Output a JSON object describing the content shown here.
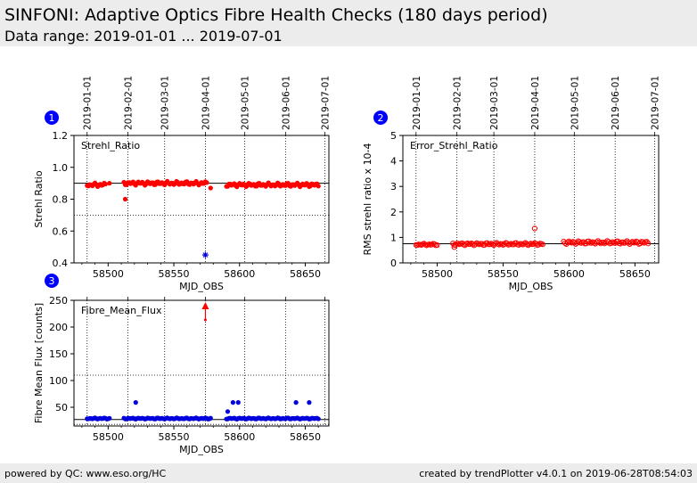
{
  "header": {
    "title": "SINFONI: Adaptive Optics Fibre Health Checks (180 days period)",
    "data_range": "Data range: 2019-01-01 ... 2019-07-01"
  },
  "footer": {
    "left": "powered by QC: www.eso.org/HC",
    "right": "created by trendPlotter v4.0.1 on 2019-06-28T08:54:03"
  },
  "colors": {
    "points": "#ff0000",
    "points_blue": "#0000dd",
    "badge": "#0000ff",
    "refline": "#000000"
  },
  "chart_data": [
    {
      "id": "1",
      "type": "scatter",
      "title": "Strehl_Ratio",
      "xlabel": "MJD_OBS",
      "ylabel": "Strehl Ratio",
      "xlim": [
        58474,
        58668
      ],
      "ylim": [
        0.4,
        1.2
      ],
      "xticks": [
        58500,
        58550,
        58600,
        58650
      ],
      "yticks": [
        0.4,
        0.6,
        0.8,
        1.0,
        1.2
      ],
      "ytick_labels": [
        "0.4",
        "0.6",
        "0.8",
        "1.0",
        "1.2"
      ],
      "reference_line": 0.9,
      "limit_lines": [
        0.7
      ],
      "date_ticks": [
        {
          "mjd": 58484,
          "label": "2019-01-01"
        },
        {
          "mjd": 58515,
          "label": "2019-02-01"
        },
        {
          "mjd": 58543,
          "label": "2019-03-01"
        },
        {
          "mjd": 58574,
          "label": "2019-04-01"
        },
        {
          "mjd": 58604,
          "label": "2019-05-01"
        },
        {
          "mjd": 58635,
          "label": "2019-06-01"
        },
        {
          "mjd": 58665,
          "label": "2019-07-01"
        }
      ],
      "segments": [
        {
          "start": 58484,
          "end": 58498,
          "base": 0.89,
          "amp": 0.01
        },
        {
          "start": 58512,
          "end": 58575,
          "base": 0.9,
          "amp": 0.01
        },
        {
          "start": 58590,
          "end": 58660,
          "base": 0.89,
          "amp": 0.01
        }
      ],
      "outliers": [
        {
          "x": 58513,
          "y": 0.8
        },
        {
          "x": 58578,
          "y": 0.87
        },
        {
          "x": 58501,
          "y": 0.9
        }
      ],
      "special_points": [
        {
          "x": 58574,
          "y": 0.45,
          "marker": "star",
          "color": "#0000dd"
        }
      ]
    },
    {
      "id": "2",
      "type": "scatter",
      "title": "Error_Strehl_Ratio",
      "xlabel": "MJD_OBS",
      "ylabel": "RMS strehl ratio x 10-4",
      "xlim": [
        58474,
        58668
      ],
      "ylim": [
        0,
        5
      ],
      "xticks": [
        58500,
        58550,
        58600,
        58650
      ],
      "yticks": [
        0,
        1,
        2,
        3,
        4,
        5
      ],
      "ytick_labels": [
        "0",
        "1",
        "2",
        "3",
        "4",
        "5"
      ],
      "reference_line": 0.75,
      "limit_lines": [],
      "date_ticks": [
        {
          "mjd": 58484,
          "label": "2019-01-01"
        },
        {
          "mjd": 58515,
          "label": "2019-02-01"
        },
        {
          "mjd": 58543,
          "label": "2019-03-01"
        },
        {
          "mjd": 58574,
          "label": "2019-04-01"
        },
        {
          "mjd": 58604,
          "label": "2019-05-01"
        },
        {
          "mjd": 58635,
          "label": "2019-06-01"
        },
        {
          "mjd": 58665,
          "label": "2019-07-01"
        }
      ],
      "segments": [
        {
          "start": 58484,
          "end": 58500,
          "base": 0.72,
          "amp": 0.03
        },
        {
          "start": 58512,
          "end": 58580,
          "base": 0.74,
          "amp": 0.04
        },
        {
          "start": 58596,
          "end": 58660,
          "base": 0.8,
          "amp": 0.05
        }
      ],
      "outliers": [
        {
          "x": 58574,
          "y": 1.35
        },
        {
          "x": 58513,
          "y": 0.62
        }
      ],
      "special_points": []
    },
    {
      "id": "3",
      "type": "scatter",
      "title": "Fibre_Mean_Flux",
      "xlabel": "MJD_OBS",
      "ylabel": "Fibre Mean Flux [counts]",
      "xlim": [
        58474,
        58668
      ],
      "ylim": [
        15,
        250
      ],
      "xticks": [
        58500,
        58550,
        58600,
        58650
      ],
      "yticks": [
        50,
        100,
        150,
        200,
        250
      ],
      "ytick_labels": [
        "50",
        "100",
        "150",
        "200",
        "250"
      ],
      "reference_line": 27,
      "limit_lines": [
        18,
        110
      ],
      "date_ticks": [
        {
          "mjd": 58484,
          "label": "2019-01-01"
        },
        {
          "mjd": 58515,
          "label": "2019-02-01"
        },
        {
          "mjd": 58543,
          "label": "2019-03-01"
        },
        {
          "mjd": 58574,
          "label": "2019-04-01"
        },
        {
          "mjd": 58604,
          "label": "2019-05-01"
        },
        {
          "mjd": 58635,
          "label": "2019-06-01"
        },
        {
          "mjd": 58665,
          "label": "2019-07-01"
        }
      ],
      "segments": [
        {
          "start": 58484,
          "end": 58501,
          "base": 29,
          "amp": 1
        },
        {
          "start": 58512,
          "end": 58578,
          "base": 29,
          "amp": 1
        },
        {
          "start": 58590,
          "end": 58660,
          "base": 29,
          "amp": 1
        }
      ],
      "outliers": [
        {
          "x": 58521,
          "y": 59
        },
        {
          "x": 58591,
          "y": 42
        },
        {
          "x": 58595,
          "y": 59
        },
        {
          "x": 58599,
          "y": 59
        },
        {
          "x": 58643,
          "y": 59
        },
        {
          "x": 58653,
          "y": 59
        }
      ],
      "special_points": [
        {
          "x": 58574,
          "y": 240,
          "marker": "arrow",
          "color": "#ff0000"
        }
      ]
    }
  ]
}
